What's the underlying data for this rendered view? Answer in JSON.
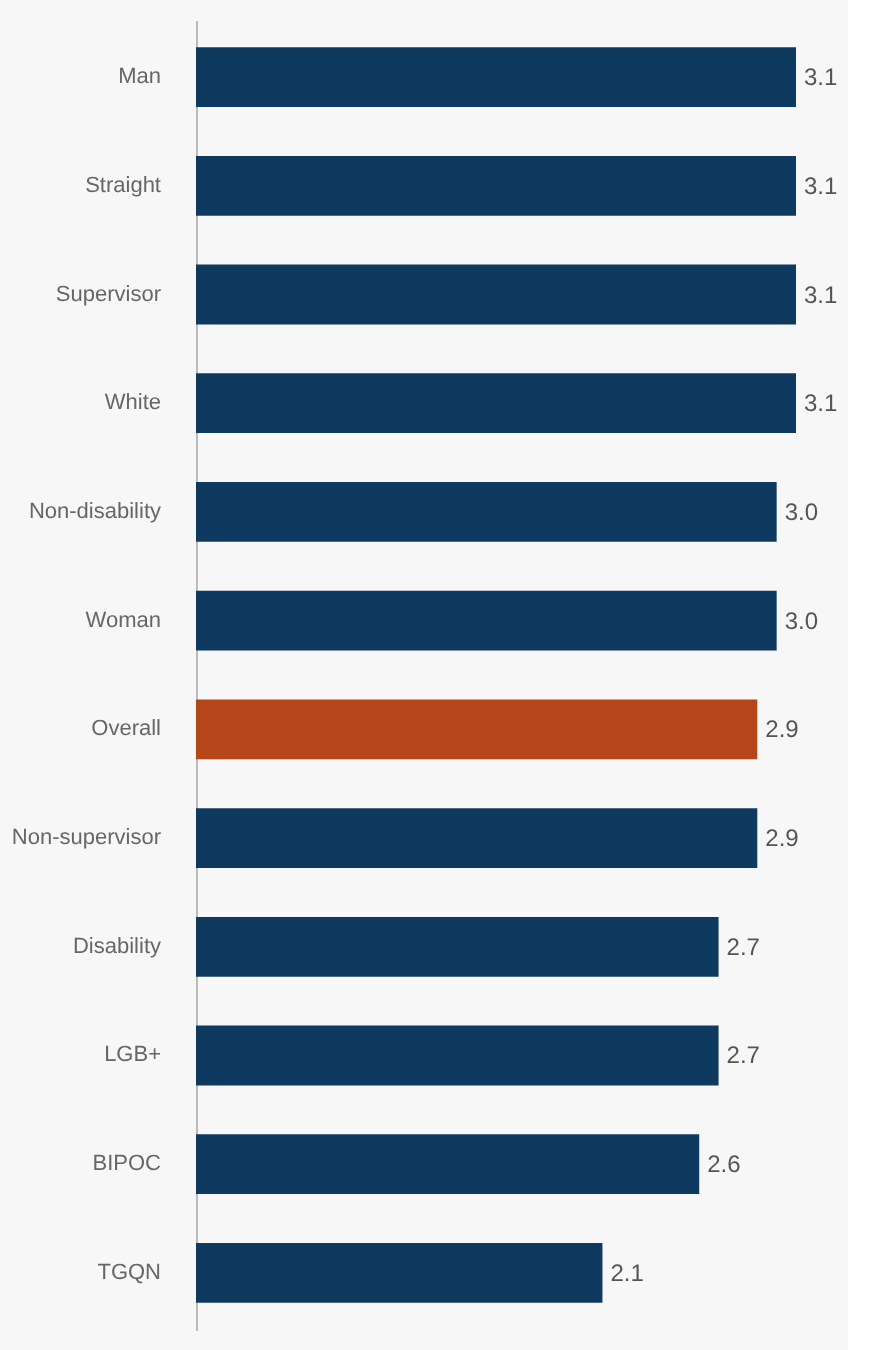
{
  "chart_data": {
    "type": "bar",
    "orientation": "horizontal",
    "value_labels": [
      "3.1",
      "3.1",
      "3.1",
      "3.1",
      "3.0",
      "3.0",
      "2.9",
      "2.9",
      "2.7",
      "2.7",
      "2.6",
      "2.1"
    ],
    "categories": [
      "Man",
      "Straight",
      "Supervisor",
      "White",
      "Non-disability",
      "Woman",
      "Overall",
      "Non-supervisor",
      "Disability",
      "LGB+",
      "BIPOC",
      "TGQN"
    ],
    "values": [
      3.1,
      3.1,
      3.1,
      3.1,
      3.0,
      3.0,
      2.9,
      2.9,
      2.7,
      2.7,
      2.6,
      2.1
    ],
    "colors": [
      "#0f3a5f",
      "#0f3a5f",
      "#0f3a5f",
      "#0f3a5f",
      "#0f3a5f",
      "#0f3a5f",
      "#b5471b",
      "#0f3a5f",
      "#0f3a5f",
      "#0f3a5f",
      "#0f3a5f",
      "#0f3a5f"
    ]
  }
}
